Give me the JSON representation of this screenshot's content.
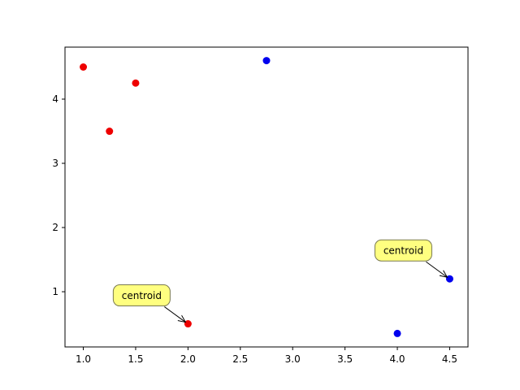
{
  "chart_data": {
    "type": "scatter",
    "title": "",
    "xlabel": "",
    "ylabel": "",
    "xlim": [
      0.825,
      4.675
    ],
    "ylim": [
      0.14,
      4.81
    ],
    "xticks": [
      "1.0",
      "1.5",
      "2.0",
      "2.5",
      "3.0",
      "3.5",
      "4.0",
      "4.5"
    ],
    "yticks": [
      "1",
      "2",
      "3",
      "4"
    ],
    "grid": false,
    "legend": "none",
    "series": [
      {
        "color": "#ee0000",
        "points": [
          {
            "x": 1.0,
            "y": 4.5
          },
          {
            "x": 1.5,
            "y": 4.25
          },
          {
            "x": 1.25,
            "y": 3.5
          },
          {
            "x": 2.0,
            "y": 0.5
          }
        ]
      },
      {
        "color": "#0000ee",
        "points": [
          {
            "x": 2.75,
            "y": 4.6
          },
          {
            "x": 4.5,
            "y": 1.2
          },
          {
            "x": 4.0,
            "y": 0.35
          }
        ]
      }
    ],
    "annotations": [
      {
        "text": "centroid",
        "point": {
          "x": 2.0,
          "y": 0.5
        },
        "box_color": "#ffff80",
        "edge_color": "#7a7a50"
      },
      {
        "text": "centroid",
        "point": {
          "x": 4.5,
          "y": 1.2
        },
        "box_color": "#ffff80",
        "edge_color": "#7a7a50"
      }
    ]
  }
}
